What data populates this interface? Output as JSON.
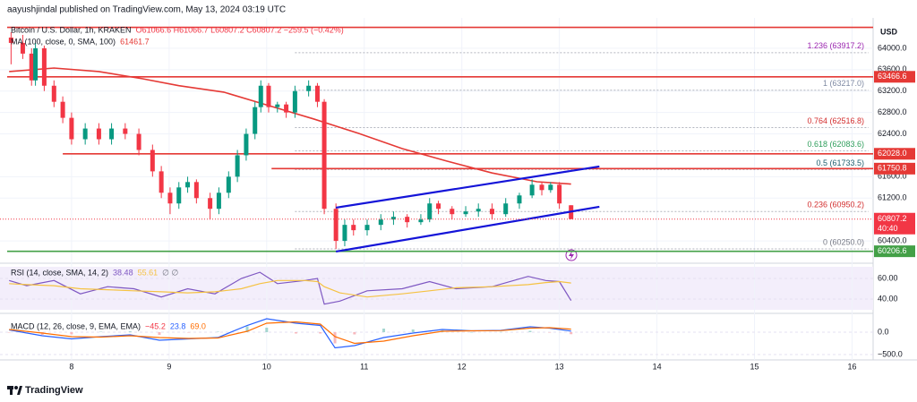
{
  "header": "aayushjindal published on TradingView.com, May 13, 2024 03:19 UTC",
  "footer": "TradingView",
  "chart_data": {
    "type": "candlestick",
    "legend": {
      "symbol": "Bitcoin / U.S. Dollar, 1h, KRAKEN",
      "ohlc": "O61066.6 H61066.7 L60807.2 C60807.2 −259.5 (−0.42%)"
    },
    "currency": "USD",
    "up_color": "#089981",
    "down_color": "#f23645",
    "xlim": [
      7.34,
      16.17
    ],
    "xticks": [
      8,
      9,
      10,
      11,
      12,
      13,
      14,
      15,
      16
    ],
    "ylim": [
      60050,
      64400
    ],
    "yticks": [
      {
        "value": 64000,
        "label": "64000.0"
      },
      {
        "value": 63600,
        "label": "63600.0"
      },
      {
        "value": 63200,
        "label": "63200.0"
      },
      {
        "value": 62800,
        "label": "62800.0"
      },
      {
        "value": 62400,
        "label": "62400.0"
      },
      {
        "value": 61600,
        "label": "61600.0"
      },
      {
        "value": 61200,
        "label": "61200.0"
      },
      {
        "value": 60400,
        "label": "60400.0"
      }
    ],
    "grid": true,
    "candles": {
      "x": [
        7.38,
        7.5,
        7.59,
        7.63,
        7.72,
        7.82,
        7.91,
        8.0,
        8.14,
        8.28,
        8.41,
        8.55,
        8.69,
        8.83,
        8.92,
        9.01,
        9.1,
        9.19,
        9.28,
        9.42,
        9.51,
        9.61,
        9.7,
        9.79,
        9.88,
        9.94,
        10.02,
        10.11,
        10.2,
        10.29,
        10.43,
        10.52,
        10.59,
        10.71,
        10.8,
        10.89,
        11.03,
        11.17,
        11.3,
        11.44,
        11.58,
        11.67,
        11.76,
        11.9,
        12.04,
        12.17,
        12.31,
        12.45,
        12.59,
        12.72,
        12.82,
        12.91,
        13.0,
        13.12
      ],
      "open": [
        64200,
        64100,
        63900,
        63400,
        64000,
        63300,
        63000,
        62700,
        62300,
        62500,
        62300,
        62500,
        62400,
        62100,
        61700,
        61300,
        61100,
        61400,
        61500,
        61200,
        61000,
        61300,
        61600,
        62000,
        62400,
        62900,
        63300,
        62900,
        62950,
        62800,
        63200,
        63300,
        63000,
        61000,
        60400,
        60700,
        60600,
        60700,
        60800,
        60850,
        60750,
        60800,
        61100,
        61000,
        60900,
        60950,
        61000,
        60900,
        61100,
        61250,
        61450,
        61350,
        61450,
        61066.6
      ],
      "high": [
        64300,
        64250,
        64000,
        64100,
        64050,
        63400,
        63100,
        62800,
        62600,
        62600,
        62600,
        62600,
        62500,
        62200,
        61800,
        61400,
        61500,
        61600,
        61550,
        61300,
        61400,
        61700,
        62100,
        62500,
        63000,
        63400,
        63350,
        63000,
        63000,
        63300,
        63400,
        63350,
        63050,
        61100,
        60800,
        60800,
        60800,
        60900,
        60950,
        60900,
        60900,
        61200,
        61150,
        61050,
        61050,
        61100,
        61100,
        61200,
        61300,
        61550,
        61500,
        61500,
        61500,
        61066.7
      ],
      "low": [
        63700,
        63800,
        63300,
        63300,
        63200,
        62900,
        62600,
        62200,
        62200,
        62200,
        62200,
        62300,
        62000,
        61600,
        61200,
        60900,
        61000,
        61300,
        61100,
        60800,
        60900,
        61200,
        61500,
        61900,
        62300,
        62800,
        62800,
        62800,
        62700,
        62700,
        63100,
        62900,
        60900,
        60250,
        60300,
        60500,
        60500,
        60600,
        60700,
        60650,
        60700,
        60750,
        60900,
        60800,
        60850,
        60850,
        60800,
        60850,
        61000,
        61200,
        61250,
        61300,
        61000,
        60807.2
      ],
      "close": [
        64100,
        63900,
        63400,
        64000,
        63300,
        63000,
        62700,
        62300,
        62500,
        62300,
        62500,
        62400,
        62100,
        61700,
        61300,
        61100,
        61400,
        61500,
        61200,
        61000,
        61300,
        61600,
        62000,
        62400,
        62900,
        63300,
        62900,
        62950,
        62800,
        63200,
        63300,
        63000,
        61000,
        60400,
        60700,
        60600,
        60700,
        60800,
        60850,
        60750,
        60800,
        61100,
        61000,
        60900,
        60950,
        61000,
        60900,
        61100,
        61250,
        61450,
        61350,
        61450,
        61100,
        60807.2
      ]
    },
    "ma": {
      "name": "MA (100, close, 0, SMA, 100)",
      "last": "61461.7",
      "color": "#e53935",
      "x": [
        7.36,
        7.82,
        8.28,
        8.73,
        9.1,
        9.56,
        10.02,
        10.48,
        10.94,
        11.39,
        11.85,
        12.31,
        12.77,
        13.12
      ],
      "values": [
        63565,
        63630,
        63565,
        63430,
        63300,
        63180,
        62930,
        62680,
        62410,
        62125,
        61890,
        61670,
        61505,
        61461.7
      ]
    },
    "hlines": [
      {
        "value": 64390,
        "from": 7.34,
        "color": "#e53935"
      },
      {
        "value": 63466.6,
        "label": "63466.6",
        "from": 7.34,
        "color": "#e53935"
      },
      {
        "value": 62028.0,
        "label": "62028.0",
        "from": 7.91,
        "color": "#e53935"
      },
      {
        "value": 61750.8,
        "label": "61750.8",
        "from": 10.05,
        "color": "#e53935"
      },
      {
        "value": 60206.6,
        "label": "60206.6",
        "from": 7.34,
        "color": "#43a047"
      }
    ],
    "last_price": {
      "value": 60807.2,
      "countdown": "40:40",
      "color": "#f23645"
    },
    "fib_x": [
      10.29,
      16.17
    ],
    "fib": [
      {
        "value": 63917.2,
        "label": "1.236 (63917.2)",
        "color": "#9c27b0"
      },
      {
        "value": 63217.0,
        "label": "1 (63217.0)",
        "color": "#7f8aa3"
      },
      {
        "value": 62516.8,
        "label": "0.764 (62516.8)",
        "color": "#d32f2f"
      },
      {
        "value": 62083.6,
        "label": "0.618 (62083.6)",
        "color": "#2e9e5b"
      },
      {
        "value": 61733.5,
        "label": "0.5 (61733.5)",
        "color": "#1f5f6f"
      },
      {
        "value": 60950.2,
        "label": "0.236 (60950.2)",
        "color": "#d32f2f"
      },
      {
        "value": 60250.0,
        "label": "0 (60250.0)",
        "color": "#787b86"
      }
    ],
    "trendlines": [
      {
        "x": [
          10.71,
          13.41
        ],
        "y": [
          61021,
          61791
        ],
        "color": "#1414d8"
      },
      {
        "x": [
          10.71,
          13.41
        ],
        "y": [
          60201,
          61038
        ],
        "color": "#1414d8"
      }
    ],
    "rsi": {
      "name": "RSI (14, close, SMA, 14, 2)",
      "last": "38.48",
      "ma_last": "55.61",
      "extra": "∅ ∅",
      "ylim": [
        27.8,
        72.2
      ],
      "yticks": [
        {
          "value": 60,
          "label": "60.00"
        },
        {
          "value": 40,
          "label": "40.00"
        }
      ],
      "x": [
        7.36,
        7.54,
        7.82,
        8.09,
        8.37,
        8.64,
        8.92,
        9.19,
        9.47,
        9.74,
        9.93,
        10.11,
        10.39,
        10.52,
        10.59,
        10.75,
        11.03,
        11.39,
        11.67,
        11.94,
        12.31,
        12.68,
        12.86,
        13.0,
        13.12
      ],
      "series": [
        {
          "color": "#7e57c2",
          "values": [
            58,
            53,
            58,
            45,
            52,
            50,
            42,
            50,
            45,
            60,
            66,
            55,
            58,
            60,
            35,
            38,
            48,
            50,
            57,
            50,
            52,
            62,
            58,
            57,
            38.48
          ]
        },
        {
          "color": "#f5c242",
          "values": [
            55,
            54,
            53,
            50,
            49,
            48,
            47,
            46,
            47,
            50,
            55,
            58,
            58,
            57,
            52,
            46,
            42,
            45,
            48,
            51,
            52,
            54,
            56,
            57,
            55.61
          ]
        }
      ]
    },
    "macd": {
      "name": "MACD (12, 26, close, 9, EMA, EMA)",
      "hist_last": "−45.2",
      "macd_last": "23.8",
      "signal_last": "69.0",
      "ylim": [
        -620,
        380
      ],
      "yticks": [
        {
          "value": 0,
          "label": "0.0"
        },
        {
          "value": -500,
          "label": "−500.0"
        }
      ],
      "x": [
        7.36,
        7.7,
        8.0,
        8.3,
        8.6,
        8.9,
        9.2,
        9.5,
        9.8,
        10.0,
        10.3,
        10.55,
        10.7,
        10.9,
        11.2,
        11.5,
        11.8,
        12.1,
        12.4,
        12.7,
        12.9,
        13.12
      ],
      "hist_up": "#a5d6d0",
      "hist_down": "#f7b8bd",
      "hist": [
        -10,
        -60,
        -50,
        10,
        20,
        -60,
        -10,
        10,
        130,
        100,
        -30,
        -30,
        -250,
        -50,
        80,
        60,
        40,
        0,
        5,
        30,
        -10,
        -45.2
      ],
      "series": [
        {
          "color": "#2962ff",
          "values": [
            50,
            -80,
            -150,
            -100,
            -60,
            -180,
            -150,
            -120,
            150,
            300,
            200,
            150,
            -350,
            -300,
            -120,
            -20,
            60,
            30,
            40,
            120,
            90,
            23.8
          ]
        },
        {
          "color": "#ff6d00",
          "values": [
            60,
            -20,
            -100,
            -110,
            -80,
            -120,
            -140,
            -130,
            20,
            200,
            230,
            180,
            -100,
            -250,
            -200,
            -80,
            20,
            30,
            35,
            90,
            100,
            69.0
          ]
        }
      ]
    }
  }
}
